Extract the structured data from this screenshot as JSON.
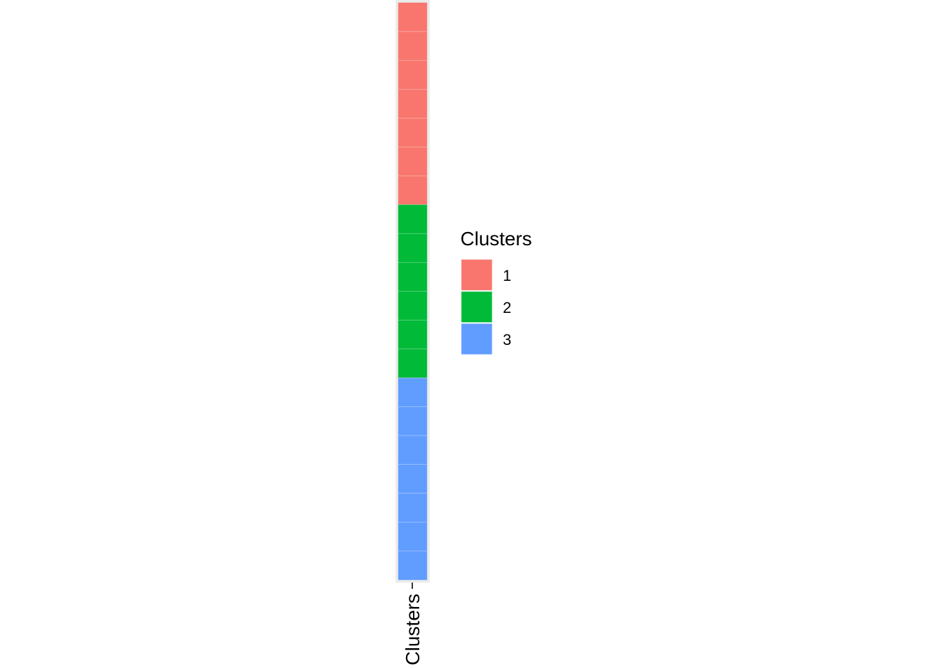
{
  "chart_data": {
    "type": "heatmap",
    "x_categories": [
      "Clusters"
    ],
    "rows": [
      {
        "cluster": "1",
        "count": 7
      },
      {
        "cluster": "2",
        "count": 6
      },
      {
        "cluster": "3",
        "count": 7
      }
    ],
    "legend": {
      "title": "Clusters",
      "placement": "right",
      "entries": [
        {
          "label": "1",
          "color": "#F8766D"
        },
        {
          "label": "2",
          "color": "#00BA38"
        },
        {
          "label": "3",
          "color": "#619CFF"
        }
      ]
    },
    "panel_background": "#EBEBEB",
    "grid": false
  }
}
